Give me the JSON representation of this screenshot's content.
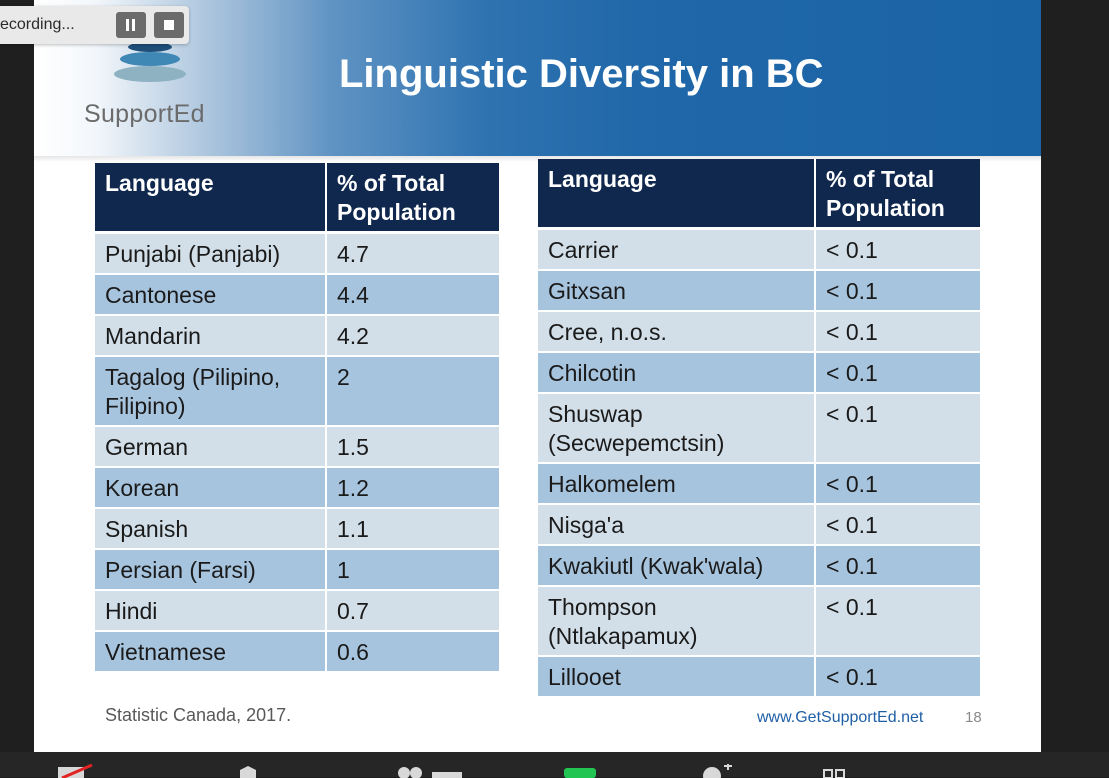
{
  "recording": {
    "label": "ecording..."
  },
  "slide": {
    "title": "Linguistic Diversity in BC",
    "logo_text": "SupportEd",
    "source": "Statistic Canada, 2017.",
    "url": "www.GetSupportEd.net",
    "page_number": "18"
  },
  "left_table": {
    "headers": [
      "Language",
      "% of Total Population"
    ],
    "rows": [
      [
        "Punjabi (Panjabi)",
        "4.7"
      ],
      [
        "Cantonese",
        "4.4"
      ],
      [
        "Mandarin",
        "4.2"
      ],
      [
        "Tagalog (Pilipino, Filipino)",
        "2"
      ],
      [
        "German",
        "1.5"
      ],
      [
        "Korean",
        "1.2"
      ],
      [
        "Spanish",
        "1.1"
      ],
      [
        "Persian (Farsi)",
        "1"
      ],
      [
        "Hindi",
        "0.7"
      ],
      [
        "Vietnamese",
        "0.6"
      ]
    ]
  },
  "right_table": {
    "headers": [
      "Language",
      "% of Total Population"
    ],
    "rows": [
      [
        "Carrier",
        "< 0.1"
      ],
      [
        "Gitxsan",
        "< 0.1"
      ],
      [
        "Cree, n.o.s.",
        "< 0.1"
      ],
      [
        "Chilcotin",
        "< 0.1"
      ],
      [
        "Shuswap (Secwepemctsin)",
        "< 0.1"
      ],
      [
        "Halkomelem",
        "< 0.1"
      ],
      [
        "Nisga'a",
        "< 0.1"
      ],
      [
        "Kwakiutl (Kwak'wala)",
        "< 0.1"
      ],
      [
        "Thompson (Ntlakapamux)",
        "< 0.1"
      ],
      [
        "Lillooet",
        "< 0.1"
      ]
    ]
  },
  "colors": {
    "header_fill": "#10284e",
    "row_light": "#d2dfe8",
    "row_dark": "#a7c4de",
    "title_band": "#1a63a5"
  },
  "icons": [
    "pause-icon",
    "stop-icon",
    "video-off-icon",
    "mute-icon",
    "participants-icon",
    "share-icon",
    "reactions-icon",
    "more-icon"
  ]
}
